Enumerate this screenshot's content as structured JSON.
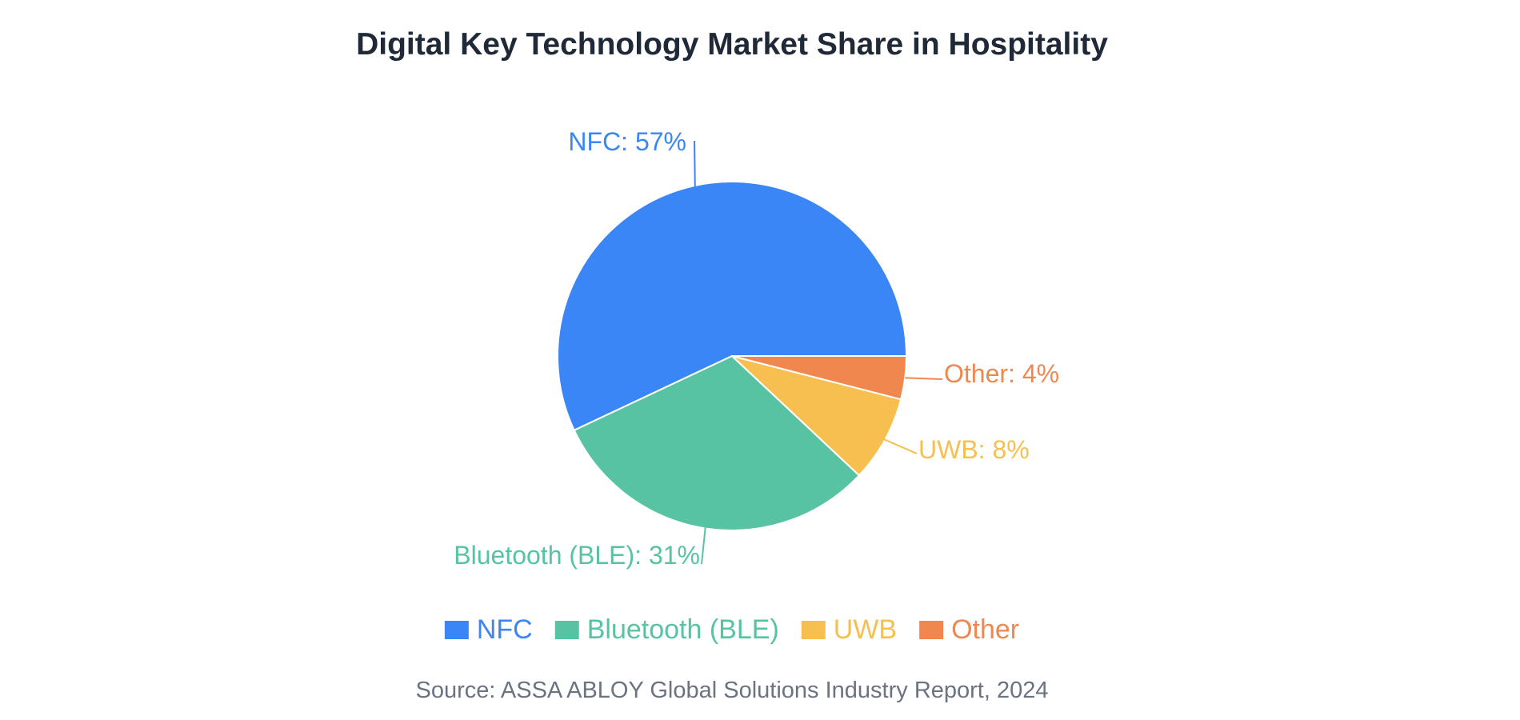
{
  "chart_data": {
    "type": "pie",
    "title": "Digital Key Technology Market Share in Hospitality",
    "categories": [
      "NFC",
      "Bluetooth (BLE)",
      "UWB",
      "Other"
    ],
    "values": [
      57,
      31,
      8,
      4
    ],
    "unit": "%",
    "colors": [
      "#3b86f7",
      "#58c3a2",
      "#f6bf4f",
      "#f0874f"
    ],
    "slice_labels": [
      "NFC: 57%",
      "Bluetooth (BLE): 31%",
      "UWB: 8%",
      "Other: 4%"
    ],
    "legend": {
      "placement": "bottom",
      "entries": [
        "NFC",
        "Bluetooth (BLE)",
        "UWB",
        "Other"
      ]
    },
    "source": "Source: ASSA ABLOY Global Solutions Industry Report, 2024"
  }
}
